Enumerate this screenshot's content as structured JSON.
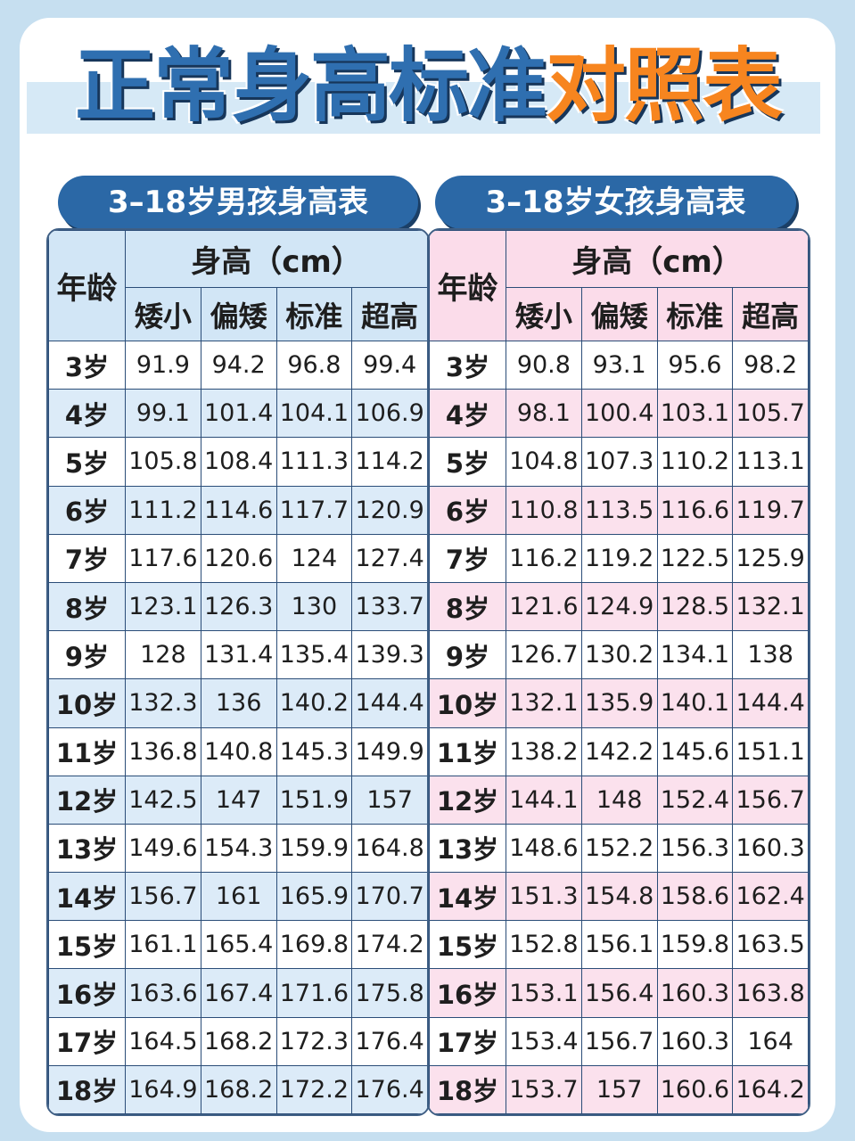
{
  "title": {
    "main": "正常身高标准",
    "accent": "对照表"
  },
  "colors": {
    "blue": "#2f6fb0",
    "orange": "#f7851f",
    "boys_tint": "#d2e6f6",
    "girls_tint": "#fbdcea"
  },
  "tables": {
    "boys": {
      "caption": "3–18岁男孩身高表",
      "age_header": "年龄",
      "height_header": "身高（cm）",
      "cols": [
        "矮小",
        "偏矮",
        "标准",
        "超高"
      ],
      "rows": [
        [
          "3岁",
          "91.9",
          "94.2",
          "96.8",
          "99.4"
        ],
        [
          "4岁",
          "99.1",
          "101.4",
          "104.1",
          "106.9"
        ],
        [
          "5岁",
          "105.8",
          "108.4",
          "111.3",
          "114.2"
        ],
        [
          "6岁",
          "111.2",
          "114.6",
          "117.7",
          "120.9"
        ],
        [
          "7岁",
          "117.6",
          "120.6",
          "124",
          "127.4"
        ],
        [
          "8岁",
          "123.1",
          "126.3",
          "130",
          "133.7"
        ],
        [
          "9岁",
          "128",
          "131.4",
          "135.4",
          "139.3"
        ],
        [
          "10岁",
          "132.3",
          "136",
          "140.2",
          "144.4"
        ],
        [
          "11岁",
          "136.8",
          "140.8",
          "145.3",
          "149.9"
        ],
        [
          "12岁",
          "142.5",
          "147",
          "151.9",
          "157"
        ],
        [
          "13岁",
          "149.6",
          "154.3",
          "159.9",
          "164.8"
        ],
        [
          "14岁",
          "156.7",
          "161",
          "165.9",
          "170.7"
        ],
        [
          "15岁",
          "161.1",
          "165.4",
          "169.8",
          "174.2"
        ],
        [
          "16岁",
          "163.6",
          "167.4",
          "171.6",
          "175.8"
        ],
        [
          "17岁",
          "164.5",
          "168.2",
          "172.3",
          "176.4"
        ],
        [
          "18岁",
          "164.9",
          "168.2",
          "172.2",
          "176.4"
        ]
      ]
    },
    "girls": {
      "caption": "3–18岁女孩身高表",
      "age_header": "年龄",
      "height_header": "身高（cm）",
      "cols": [
        "矮小",
        "偏矮",
        "标准",
        "超高"
      ],
      "rows": [
        [
          "3岁",
          "90.8",
          "93.1",
          "95.6",
          "98.2"
        ],
        [
          "4岁",
          "98.1",
          "100.4",
          "103.1",
          "105.7"
        ],
        [
          "5岁",
          "104.8",
          "107.3",
          "110.2",
          "113.1"
        ],
        [
          "6岁",
          "110.8",
          "113.5",
          "116.6",
          "119.7"
        ],
        [
          "7岁",
          "116.2",
          "119.2",
          "122.5",
          "125.9"
        ],
        [
          "8岁",
          "121.6",
          "124.9",
          "128.5",
          "132.1"
        ],
        [
          "9岁",
          "126.7",
          "130.2",
          "134.1",
          "138"
        ],
        [
          "10岁",
          "132.1",
          "135.9",
          "140.1",
          "144.4"
        ],
        [
          "11岁",
          "138.2",
          "142.2",
          "145.6",
          "151.1"
        ],
        [
          "12岁",
          "144.1",
          "148",
          "152.4",
          "156.7"
        ],
        [
          "13岁",
          "148.6",
          "152.2",
          "156.3",
          "160.3"
        ],
        [
          "14岁",
          "151.3",
          "154.8",
          "158.6",
          "162.4"
        ],
        [
          "15岁",
          "152.8",
          "156.1",
          "159.8",
          "163.5"
        ],
        [
          "16岁",
          "153.1",
          "156.4",
          "160.3",
          "163.8"
        ],
        [
          "17岁",
          "153.4",
          "156.7",
          "160.3",
          "164"
        ],
        [
          "18岁",
          "153.7",
          "157",
          "160.6",
          "164.2"
        ]
      ]
    }
  }
}
